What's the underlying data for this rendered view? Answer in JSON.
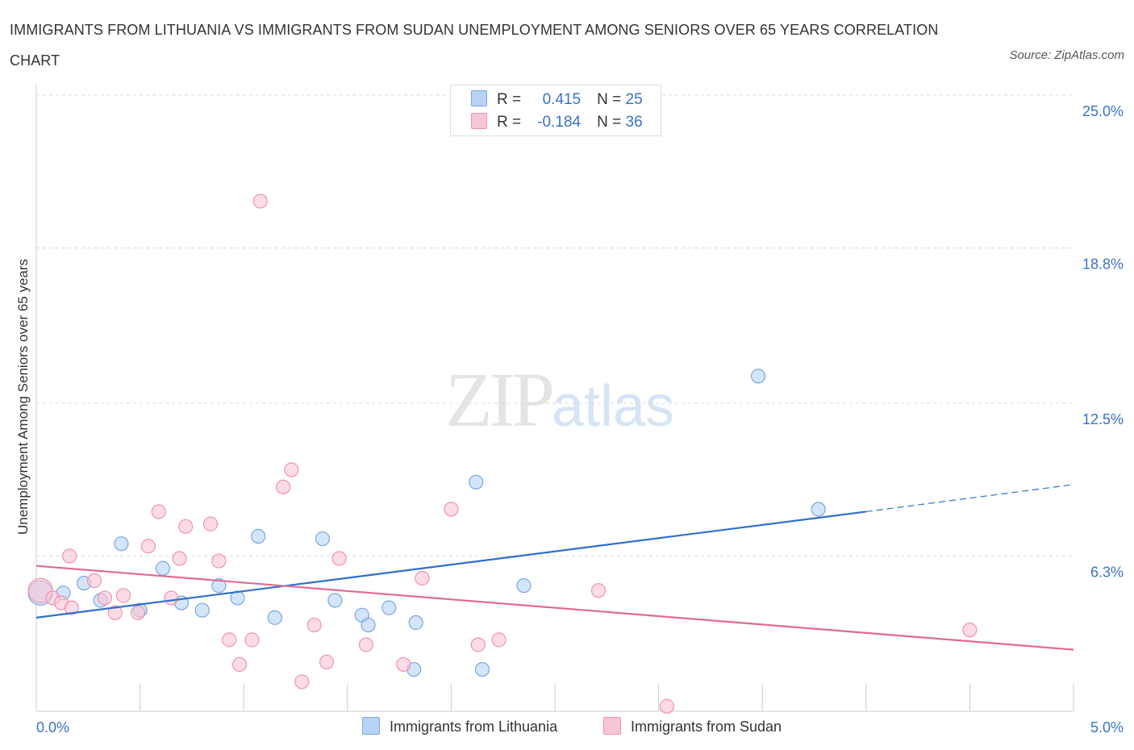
{
  "title": "IMMIGRANTS FROM LITHUANIA VS IMMIGRANTS FROM SUDAN UNEMPLOYMENT AMONG SENIORS OVER 65 YEARS CORRELATION CHART",
  "source": "Source: ZipAtlas.com",
  "watermark": {
    "zip": "ZIP",
    "atlas": "atlas"
  },
  "legend": {
    "rows": [
      {
        "r_label": "R =",
        "r_value": "0.415",
        "n_label": "N =",
        "n_value": "25"
      },
      {
        "r_label": "R =",
        "r_value": "-0.184",
        "n_label": "N =",
        "n_value": "36"
      }
    ]
  },
  "colors": {
    "lithuania_fill": "#b8d3f5",
    "lithuania_stroke": "#7aa6e0",
    "lithuania_line": "#2f6fcc",
    "sudan_fill": "#f8c5d4",
    "sudan_stroke": "#ee94b0",
    "sudan_line": "#e06a94",
    "tick_label": "#3a73c4",
    "grid": "#d9d9d9"
  },
  "chart_data": {
    "type": "scatter",
    "xlabel": "",
    "ylabel": "Unemployment Among Seniors over 65 years",
    "xlim": [
      0,
      5
    ],
    "ylim": [
      0,
      25
    ],
    "x_tick_labels": [
      {
        "value": 0,
        "label": "0.0%"
      },
      {
        "value": 5,
        "label": "5.0%"
      }
    ],
    "y_tick_labels": [
      {
        "value": 6.3,
        "label": "6.3%"
      },
      {
        "value": 12.5,
        "label": "12.5%"
      },
      {
        "value": 18.8,
        "label": "18.8%"
      },
      {
        "value": 25.0,
        "label": "25.0%"
      }
    ],
    "grid": true,
    "legend_position": "top-center",
    "series": [
      {
        "name": "Immigrants from Lithuania",
        "color": "#7aa6e0",
        "points": [
          [
            0.02,
            4.8
          ],
          [
            0.13,
            4.8
          ],
          [
            0.23,
            5.2
          ],
          [
            0.31,
            4.5
          ],
          [
            0.41,
            6.8
          ],
          [
            0.5,
            4.1
          ],
          [
            0.61,
            5.8
          ],
          [
            0.7,
            4.4
          ],
          [
            0.8,
            4.1
          ],
          [
            0.88,
            5.1
          ],
          [
            0.97,
            4.6
          ],
          [
            1.07,
            7.1
          ],
          [
            1.15,
            3.8
          ],
          [
            1.38,
            7.0
          ],
          [
            1.44,
            4.5
          ],
          [
            1.57,
            3.9
          ],
          [
            1.6,
            3.5
          ],
          [
            1.7,
            4.2
          ],
          [
            1.83,
            3.6
          ],
          [
            1.82,
            1.7
          ],
          [
            2.12,
            9.3
          ],
          [
            2.15,
            1.7
          ],
          [
            2.35,
            5.1
          ],
          [
            3.48,
            13.6
          ],
          [
            3.77,
            8.2
          ]
        ],
        "trend": {
          "x": [
            0,
            4.0
          ],
          "y": [
            3.8,
            8.1
          ],
          "dashed_to": [
            5.0,
            9.2
          ]
        }
      },
      {
        "name": "Immigrants from Sudan",
        "color": "#ee94b0",
        "points": [
          [
            0.02,
            4.9
          ],
          [
            0.08,
            4.6
          ],
          [
            0.12,
            4.4
          ],
          [
            0.17,
            4.2
          ],
          [
            0.28,
            5.3
          ],
          [
            0.33,
            4.6
          ],
          [
            0.38,
            4.0
          ],
          [
            0.42,
            4.7
          ],
          [
            0.49,
            4.0
          ],
          [
            0.54,
            6.7
          ],
          [
            0.59,
            8.1
          ],
          [
            0.65,
            4.6
          ],
          [
            0.69,
            6.2
          ],
          [
            0.72,
            7.5
          ],
          [
            0.84,
            7.6
          ],
          [
            0.88,
            6.1
          ],
          [
            0.93,
            2.9
          ],
          [
            0.98,
            1.9
          ],
          [
            1.04,
            2.9
          ],
          [
            1.08,
            20.7
          ],
          [
            1.19,
            9.1
          ],
          [
            1.23,
            9.8
          ],
          [
            1.28,
            1.2
          ],
          [
            1.34,
            3.5
          ],
          [
            1.4,
            2.0
          ],
          [
            1.46,
            6.2
          ],
          [
            1.59,
            2.7
          ],
          [
            1.77,
            1.9
          ],
          [
            1.86,
            5.4
          ],
          [
            2.0,
            8.2
          ],
          [
            2.13,
            2.7
          ],
          [
            2.23,
            2.9
          ],
          [
            2.71,
            4.9
          ],
          [
            3.04,
            0.2
          ],
          [
            4.5,
            3.3
          ],
          [
            0.16,
            6.3
          ]
        ],
        "trend": {
          "x": [
            0,
            5.0
          ],
          "y": [
            5.9,
            2.5
          ]
        }
      }
    ]
  },
  "bottom_legend": [
    {
      "label": "Immigrants from Lithuania"
    },
    {
      "label": "Immigrants from Sudan"
    }
  ]
}
